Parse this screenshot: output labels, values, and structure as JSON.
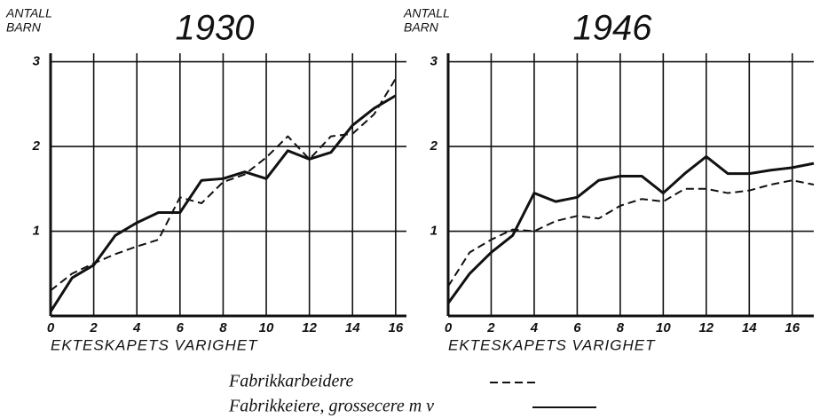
{
  "chart_data": [
    {
      "type": "line",
      "title": "1930",
      "ylabel": [
        "ANTALL",
        "BARN"
      ],
      "xlabel": "EKTESKAPETS VARIGHET",
      "xlim": [
        0,
        16.5
      ],
      "ylim": [
        0,
        3.1
      ],
      "xticks": [
        0,
        2,
        4,
        6,
        8,
        10,
        12,
        14,
        16
      ],
      "yticks": [
        1,
        2,
        3
      ],
      "grid": true,
      "series": [
        {
          "style": "dashed",
          "color": "#111",
          "x": [
            0,
            1,
            2,
            3,
            4,
            5,
            6,
            7,
            8,
            9,
            10,
            11,
            12,
            13,
            14,
            15,
            16
          ],
          "values": [
            0.3,
            0.5,
            0.62,
            0.73,
            0.82,
            0.9,
            1.4,
            1.33,
            1.58,
            1.67,
            1.87,
            2.12,
            1.85,
            2.12,
            2.15,
            2.38,
            2.8
          ]
        },
        {
          "style": "solid",
          "color": "#111",
          "x": [
            0,
            1,
            2,
            3,
            4,
            5,
            6,
            7,
            8,
            9,
            10,
            11,
            12,
            13,
            14,
            15,
            16
          ],
          "values": [
            0.05,
            0.45,
            0.6,
            0.95,
            1.1,
            1.22,
            1.22,
            1.6,
            1.62,
            1.7,
            1.62,
            1.95,
            1.85,
            1.93,
            2.25,
            2.45,
            2.6
          ]
        }
      ]
    },
    {
      "type": "line",
      "title": "1946",
      "ylabel": [
        "ANTALL",
        "BARN"
      ],
      "xlabel": "EKTESKAPETS VARIGHET",
      "xlim": [
        0,
        17
      ],
      "ylim": [
        0,
        3.1
      ],
      "xticks": [
        0,
        2,
        4,
        6,
        8,
        10,
        12,
        14,
        16
      ],
      "yticks": [
        1,
        2,
        3
      ],
      "grid": true,
      "series": [
        {
          "style": "dashed",
          "color": "#111",
          "x": [
            0,
            1,
            2,
            3,
            4,
            5,
            6,
            7,
            8,
            9,
            10,
            11,
            12,
            13,
            14,
            15,
            16,
            17
          ],
          "values": [
            0.35,
            0.75,
            0.9,
            1.02,
            1.0,
            1.12,
            1.18,
            1.15,
            1.3,
            1.38,
            1.35,
            1.5,
            1.5,
            1.45,
            1.48,
            1.55,
            1.6,
            1.55
          ]
        },
        {
          "style": "solid",
          "color": "#111",
          "x": [
            0,
            1,
            2,
            3,
            4,
            5,
            6,
            7,
            8,
            9,
            10,
            11,
            12,
            13,
            14,
            15,
            16,
            17
          ],
          "values": [
            0.15,
            0.5,
            0.75,
            0.95,
            1.45,
            1.35,
            1.4,
            1.6,
            1.65,
            1.65,
            1.45,
            1.68,
            1.88,
            1.68,
            1.68,
            1.72,
            1.75,
            1.8
          ]
        }
      ]
    }
  ],
  "legend": [
    {
      "name": "Fabrikkarbeidere",
      "style": "dashed"
    },
    {
      "name": "Fabrikkeiere, grossecere m v",
      "style": "solid"
    }
  ]
}
